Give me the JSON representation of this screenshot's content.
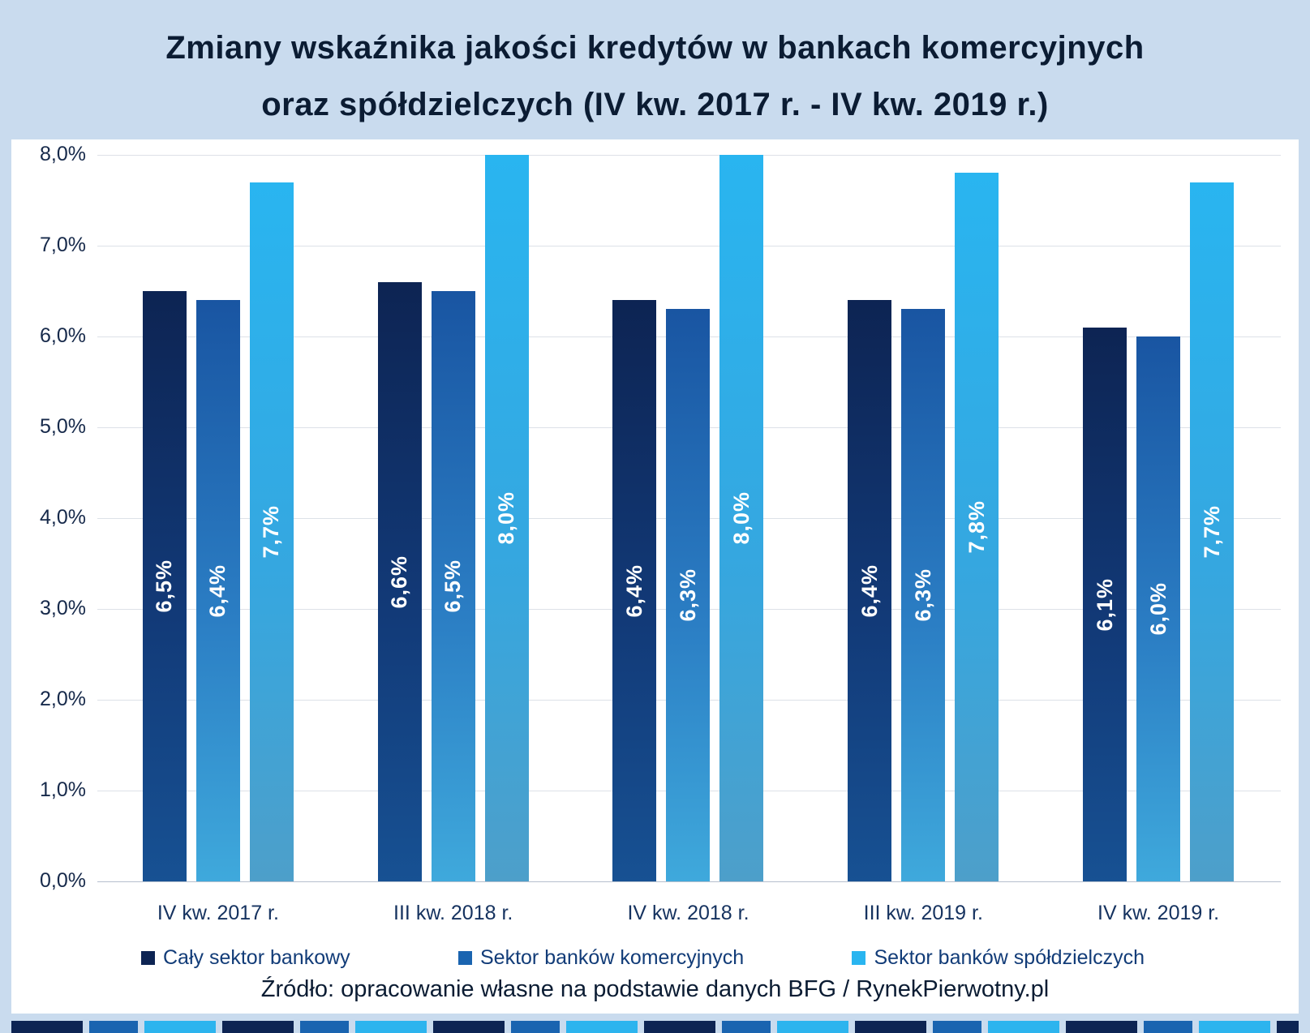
{
  "title": {
    "line1": "Zmiany wskaźnika jakości kredytów w bankach komercyjnych",
    "line2": "oraz spółdzielczych (IV kw. 2017 r. - IV kw. 2019 r.)"
  },
  "source": "Źródło: opracowanie własne na podstawie danych BFG / RynekPierwotny.pl",
  "colors": {
    "background": "#c9dbee",
    "surface": "#ffffff",
    "series_1": "#0d2453",
    "series_2": "#1a64b0",
    "series_3": "#29b5f0",
    "bar_label_text": "#ffffff",
    "title_text": "#0b1c33"
  },
  "chart_data": {
    "type": "bar",
    "title": "Zmiany wskaźnika jakości kredytów w bankach komercyjnych oraz spółdzielczych (IV kw. 2017 r. - IV kw. 2019 r.)",
    "categories": [
      "IV kw. 2017 r.",
      "III kw. 2018 r.",
      "IV kw. 2018 r.",
      "III kw. 2019 r.",
      "IV kw. 2019 r."
    ],
    "series": [
      {
        "name": "Cały sektor bankowy",
        "color": "#0d2453",
        "values": [
          6.5,
          6.6,
          6.4,
          6.4,
          6.1
        ],
        "labels": [
          "6,5%",
          "6,6%",
          "6,4%",
          "6,4%",
          "6,1%"
        ]
      },
      {
        "name": "Sektor banków komercyjnych",
        "color": "#1a64b0",
        "values": [
          6.4,
          6.5,
          6.3,
          6.3,
          6.0
        ],
        "labels": [
          "6,4%",
          "6,5%",
          "6,3%",
          "6,3%",
          "6,0%"
        ]
      },
      {
        "name": "Sektor banków spółdzielczych",
        "color": "#29b5f0",
        "values": [
          7.7,
          8.0,
          8.0,
          7.8,
          7.7
        ],
        "labels": [
          "7,7%",
          "8,0%",
          "8,0%",
          "7,8%",
          "7,7%"
        ]
      }
    ],
    "xlabel": "",
    "ylabel": "",
    "ylim": [
      0,
      8
    ],
    "ytick_step": 1,
    "ytick_labels": [
      "0,0%",
      "1,0%",
      "2,0%",
      "3,0%",
      "4,0%",
      "5,0%",
      "6,0%",
      "7,0%",
      "8,0%"
    ],
    "grid": true,
    "legend_position": "bottom"
  }
}
